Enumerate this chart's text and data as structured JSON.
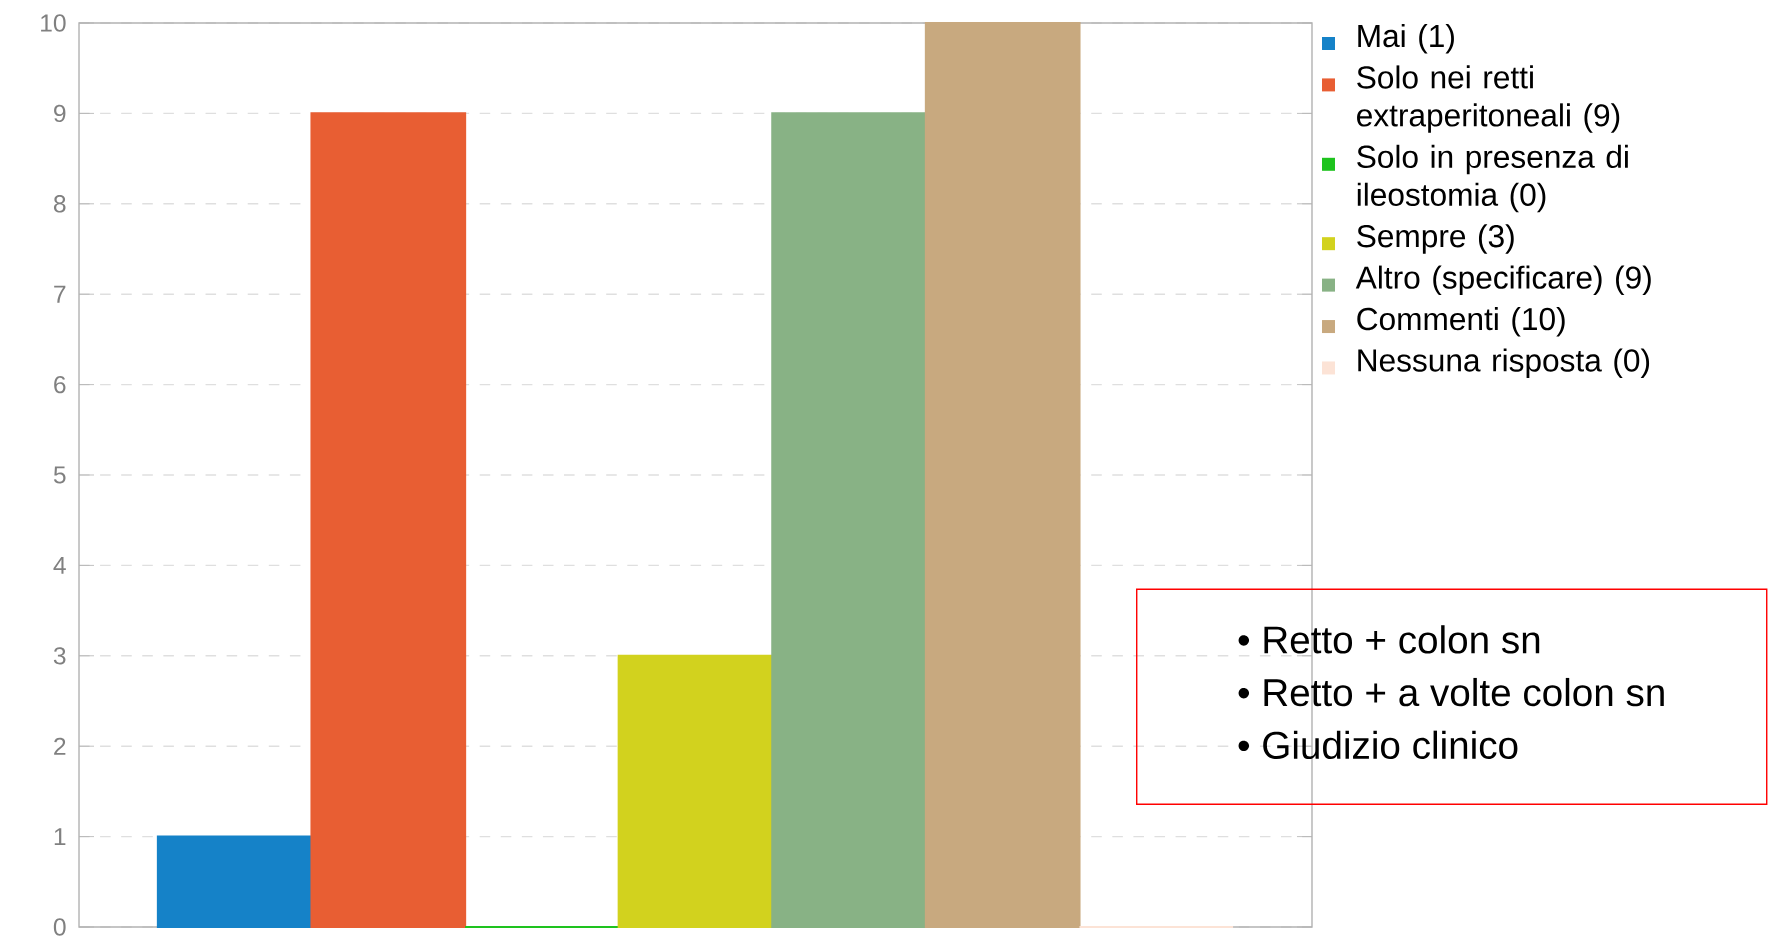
{
  "chart_data": {
    "type": "bar",
    "categories": [
      null
    ],
    "series": [
      {
        "name": "Mai (1)",
        "color": "#1582c8",
        "values": [
          1
        ]
      },
      {
        "name": "Solo nei retti extraperitoneali (9)",
        "color": "#e85e33",
        "values": [
          9
        ]
      },
      {
        "name": "Solo in presenza di ileostomia (0)",
        "color": "#1ec31e",
        "values": [
          0
        ]
      },
      {
        "name": "Sempre (3)",
        "color": "#d2d21e",
        "values": [
          3
        ]
      },
      {
        "name": "Altro (specificare) (9)",
        "color": "#88b285",
        "values": [
          9
        ]
      },
      {
        "name": "Commenti (10)",
        "color": "#c8a97f",
        "values": [
          10
        ]
      },
      {
        "name": "Nessuna risposta (0)",
        "color": "#fce3d6",
        "values": [
          0
        ]
      }
    ],
    "ylim": [
      0,
      10
    ],
    "yticks": [
      0,
      1,
      2,
      3,
      4,
      5,
      6,
      7,
      8,
      9,
      10
    ],
    "grid": "y",
    "legend": "top right",
    "annotations": [
      "• Retto + colon sn",
      "• Retto + a volte colon sn",
      "• Giudizio clinico"
    ]
  }
}
